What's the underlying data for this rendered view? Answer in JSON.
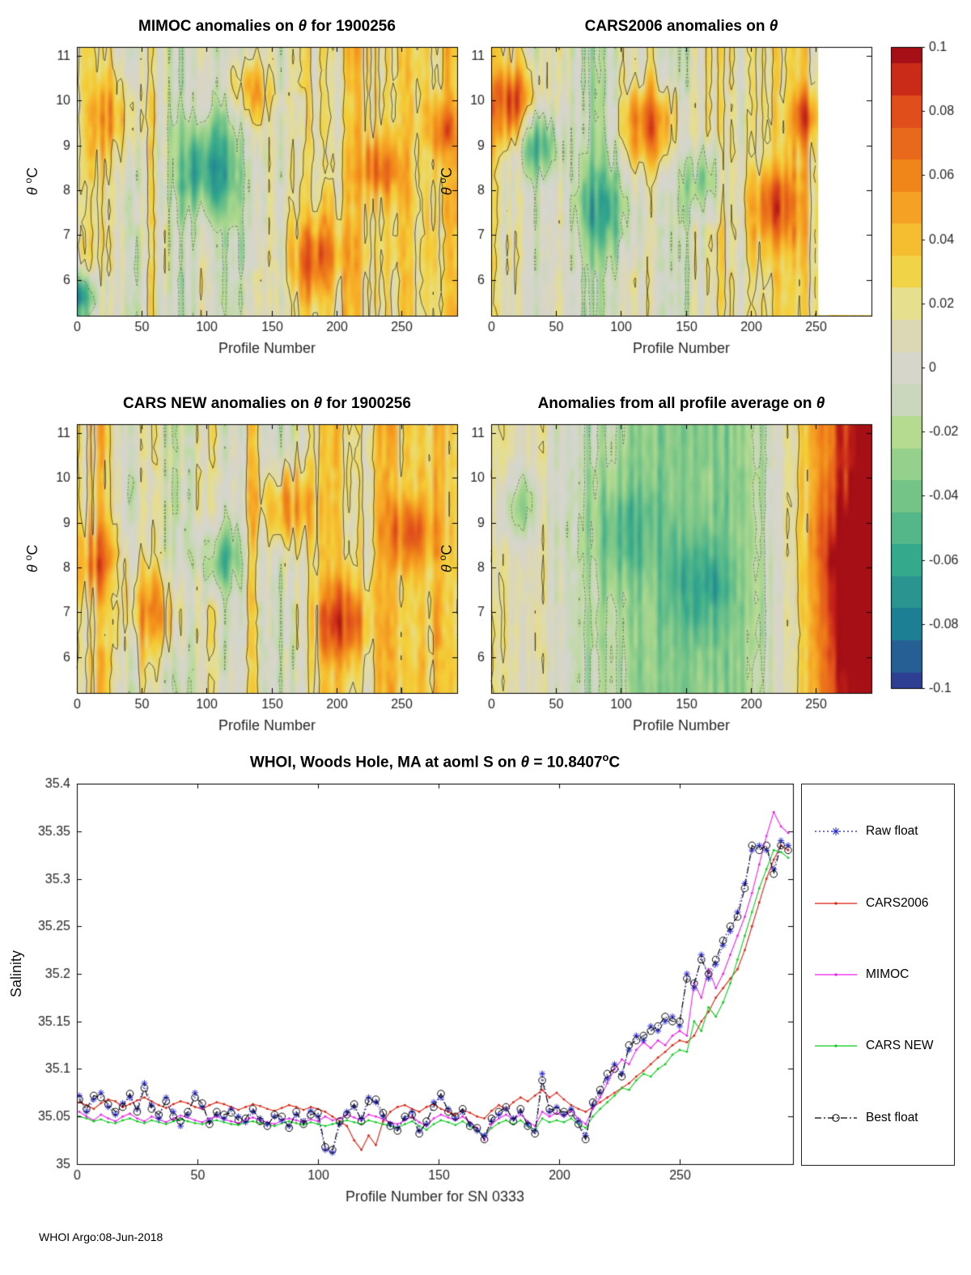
{
  "figure": {
    "footer": "WHOI Argo:08-Jun-2018"
  },
  "colorbar": {
    "range": [
      -0.1,
      0.1
    ],
    "ticks": [
      0.1,
      0.08,
      0.06,
      0.04,
      0.02,
      0,
      -0.02,
      -0.04,
      -0.06,
      -0.08,
      -0.1
    ],
    "stops": [
      [
        -0.1,
        "#2e3f93"
      ],
      [
        -0.08,
        "#1d7f93"
      ],
      [
        -0.06,
        "#35a98c"
      ],
      [
        -0.04,
        "#74c487"
      ],
      [
        -0.02,
        "#b5db90"
      ],
      [
        -0.006,
        "#d4d6cf"
      ],
      [
        0.006,
        "#d8d5c6"
      ],
      [
        0.02,
        "#e6df8e"
      ],
      [
        0.032,
        "#f3d13a"
      ],
      [
        0.045,
        "#f7b02a"
      ],
      [
        0.06,
        "#f08519"
      ],
      [
        0.08,
        "#e04e1c"
      ],
      [
        0.092,
        "#c42417"
      ],
      [
        0.1,
        "#a50f15"
      ]
    ]
  },
  "chart_data": [
    {
      "id": "mimoc",
      "type": "heatmap",
      "title": {
        "pre": "MIMOC anomalies on ",
        "theta": "θ",
        "post": " for 1900256"
      },
      "xlabel": "Profile Number",
      "ylabel": {
        "theta": "θ",
        "sup": "o",
        "post": "C"
      },
      "x_range": [
        0,
        293
      ],
      "y_range": [
        5.2,
        11.2
      ],
      "x_ticks": [
        0,
        50,
        100,
        150,
        200,
        250
      ],
      "y_ticks": [
        6,
        7,
        8,
        9,
        10,
        11
      ],
      "value_range": [
        -0.1,
        0.1
      ],
      "field": {
        "nx": 96,
        "ny": 24,
        "seed": 11,
        "noise_amp": 0.032,
        "data_end": 1,
        "col_ctrl": [
          0.015,
          0.025,
          -0.005,
          0.02,
          -0.015,
          0.005,
          -0.02,
          0.01,
          0,
          0.025,
          0.01,
          0.03,
          0.015,
          0.035,
          0.02,
          0.03
        ],
        "spots": [
          [
            0.34,
            0.45,
            0.06,
            -0.07
          ],
          [
            0.1,
            0.25,
            0.05,
            0.04
          ],
          [
            0.63,
            0.8,
            0.05,
            0.06
          ],
          [
            0.45,
            0.15,
            0.04,
            0.05
          ],
          [
            0.01,
            0.95,
            0.03,
            -0.09
          ],
          [
            0.8,
            0.45,
            0.04,
            0.05
          ],
          [
            0.97,
            0.3,
            0.03,
            0.04
          ]
        ]
      }
    },
    {
      "id": "cars2006",
      "type": "heatmap",
      "title": {
        "pre": "CARS2006 anomalies on ",
        "theta": "θ",
        "post": ""
      },
      "xlabel": "Profile Number",
      "ylabel": {
        "theta": "θ",
        "sup": "o",
        "post": "C"
      },
      "x_range": [
        0,
        293
      ],
      "y_range": [
        5.2,
        11.2
      ],
      "x_ticks": [
        0,
        50,
        100,
        150,
        200,
        250
      ],
      "y_ticks": [
        6,
        7,
        8,
        9,
        10,
        11
      ],
      "value_range": [
        -0.1,
        0.1
      ],
      "field": {
        "nx": 96,
        "ny": 24,
        "seed": 23,
        "noise_amp": 0.03,
        "data_end": 0.86,
        "col_ctrl": [
          0.02,
          0.01,
          -0.01,
          0,
          -0.02,
          -0.005,
          0.015,
          -0.01,
          0,
          0.02,
          0.005,
          0.025,
          0.03,
          0.02,
          0.035,
          0.025
        ],
        "spots": [
          [
            0.05,
            0.2,
            0.05,
            0.07
          ],
          [
            0.12,
            0.35,
            0.04,
            -0.06
          ],
          [
            0.42,
            0.28,
            0.05,
            0.07
          ],
          [
            0.3,
            0.6,
            0.05,
            -0.05
          ],
          [
            0.56,
            0.5,
            0.04,
            -0.04
          ],
          [
            0.75,
            0.6,
            0.05,
            0.06
          ],
          [
            0.83,
            0.25,
            0.03,
            0.05
          ]
        ]
      }
    },
    {
      "id": "carsnew",
      "type": "heatmap",
      "title": {
        "pre": "CARS NEW anomalies on ",
        "theta": "θ",
        "post": " for 1900256"
      },
      "xlabel": "Profile Number",
      "ylabel": {
        "theta": "θ",
        "sup": "o",
        "post": "C"
      },
      "x_range": [
        0,
        293
      ],
      "y_range": [
        5.2,
        11.2
      ],
      "x_ticks": [
        0,
        50,
        100,
        150,
        200,
        250
      ],
      "y_ticks": [
        6,
        7,
        8,
        9,
        10,
        11
      ],
      "value_range": [
        -0.1,
        0.1
      ],
      "field": {
        "nx": 96,
        "ny": 24,
        "seed": 37,
        "noise_amp": 0.032,
        "data_end": 1,
        "col_ctrl": [
          0.01,
          0.03,
          0,
          0.015,
          -0.01,
          0.02,
          0,
          0.025,
          -0.015,
          0.01,
          0.03,
          0.005,
          0.035,
          0.02,
          0.04,
          0.015
        ],
        "spots": [
          [
            0.2,
            0.7,
            0.05,
            0.05
          ],
          [
            0.38,
            0.5,
            0.04,
            -0.05
          ],
          [
            0.55,
            0.3,
            0.05,
            0.06
          ],
          [
            0.7,
            0.75,
            0.05,
            0.06
          ],
          [
            0.05,
            0.5,
            0.04,
            0.04
          ],
          [
            0.88,
            0.4,
            0.04,
            0.05
          ]
        ]
      }
    },
    {
      "id": "allprofile",
      "type": "heatmap",
      "title": {
        "pre": "Anomalies from all profile average on ",
        "theta": "θ",
        "post": ""
      },
      "xlabel": "Profile Number",
      "ylabel": {
        "theta": "θ",
        "sup": "o",
        "post": "C"
      },
      "x_range": [
        0,
        293
      ],
      "y_range": [
        5.2,
        11.2
      ],
      "x_ticks": [
        0,
        50,
        100,
        150,
        200,
        250
      ],
      "y_ticks": [
        6,
        7,
        8,
        9,
        10,
        11
      ],
      "value_range": [
        -0.1,
        0.1
      ],
      "field": {
        "nx": 96,
        "ny": 24,
        "seed": 51,
        "noise_amp": 0.022,
        "data_end": 1,
        "col_ctrl": [
          0.02,
          0.005,
          0.015,
          -0.01,
          -0.02,
          -0.025,
          -0.03,
          -0.035,
          -0.03,
          -0.04,
          -0.025,
          -0.01,
          0.02,
          0.05,
          0.09,
          0.12
        ],
        "spots": [
          [
            0.97,
            0.5,
            0.06,
            0.06
          ],
          [
            0.99,
            0.8,
            0.05,
            0.06
          ],
          [
            0.35,
            0.4,
            0.06,
            -0.03
          ],
          [
            0.55,
            0.6,
            0.06,
            -0.03
          ],
          [
            0.07,
            0.3,
            0.04,
            -0.04
          ]
        ]
      }
    },
    {
      "id": "salinity",
      "type": "line",
      "title": {
        "pre": "WHOI, Woods Hole, MA at aoml S on ",
        "theta": "θ",
        "mid": " = 10.8407",
        "sup": "o",
        "post": "C"
      },
      "xlabel": "Profile Number for SN 0333",
      "ylabel": "Salinity",
      "x_range": [
        0,
        297
      ],
      "y_range": [
        35,
        35.4
      ],
      "x_ticks": [
        0,
        50,
        100,
        150,
        200,
        250
      ],
      "y_ticks": [
        35,
        35.05,
        35.1,
        35.15,
        35.2,
        35.25,
        35.3,
        35.35,
        35.4
      ],
      "x_start": 1,
      "x_step": 3,
      "y_base": 35,
      "y_scale": 0.001,
      "draw_order": [
        1,
        2,
        3,
        0,
        4
      ],
      "series": [
        {
          "name": "Raw float",
          "color": "#2222cc",
          "line": "dotted",
          "marker": "asterisk",
          "y": [
            72,
            55,
            68,
            75,
            60,
            52,
            64,
            70,
            58,
            85,
            62,
            48,
            70,
            55,
            40,
            52,
            75,
            60,
            45,
            52,
            48,
            58,
            50,
            44,
            55,
            48,
            42,
            50,
            46,
            40,
            52,
            45,
            56,
            50,
            15,
            12,
            42,
            55,
            60,
            48,
            70,
            65,
            50,
            42,
            38,
            48,
            55,
            35,
            42,
            65,
            70,
            58,
            48,
            55,
            42,
            35,
            30,
            45,
            52,
            58,
            48,
            55,
            42,
            35,
            95,
            55,
            60,
            52,
            58,
            45,
            30,
            62,
            75,
            90,
            105,
            95,
            120,
            135,
            130,
            145,
            140,
            150,
            155,
            145,
            200,
            185,
            220,
            195,
            210,
            230,
            245,
            265,
            295,
            330,
            335,
            330,
            310,
            340,
            335
          ]
        },
        {
          "name": "CARS2006",
          "color": "#dd2211",
          "line": "solid",
          "marker": "dot",
          "y": [
            65,
            62,
            58,
            64,
            68,
            66,
            60,
            63,
            67,
            70,
            66,
            62,
            59,
            63,
            66,
            64,
            60,
            58,
            62,
            65,
            63,
            60,
            57,
            60,
            63,
            61,
            58,
            56,
            59,
            62,
            60,
            57,
            60,
            58,
            55,
            50,
            45,
            40,
            25,
            15,
            30,
            20,
            45,
            55,
            60,
            62,
            58,
            55,
            60,
            63,
            58,
            55,
            52,
            57,
            54,
            50,
            48,
            56,
            62,
            58,
            65,
            70,
            66,
            72,
            78,
            70,
            75,
            68,
            62,
            58,
            55,
            60,
            65,
            70,
            75,
            80,
            85,
            92,
            98,
            105,
            112,
            118,
            125,
            130,
            128,
            135,
            150,
            160,
            175,
            185,
            195,
            205,
            225,
            250,
            275,
            300,
            320,
            335,
            330
          ]
        },
        {
          "name": "MIMOC",
          "color": "#ee22ee",
          "line": "solid",
          "marker": "dot",
          "y": [
            55,
            50,
            46,
            52,
            48,
            45,
            50,
            53,
            48,
            45,
            50,
            47,
            44,
            48,
            51,
            49,
            46,
            44,
            48,
            50,
            47,
            45,
            43,
            47,
            49,
            46,
            44,
            42,
            46,
            48,
            46,
            44,
            47,
            45,
            50,
            46,
            48,
            52,
            49,
            46,
            52,
            50,
            47,
            44,
            42,
            46,
            50,
            44,
            40,
            48,
            52,
            49,
            46,
            50,
            44,
            38,
            25,
            42,
            48,
            52,
            47,
            52,
            45,
            40,
            55,
            50,
            54,
            50,
            56,
            48,
            42,
            58,
            70,
            85,
            100,
            110,
            105,
            120,
            128,
            122,
            130,
            125,
            135,
            140,
            135,
            190,
            175,
            205,
            185,
            200,
            220,
            240,
            260,
            285,
            315,
            345,
            370,
            355,
            348
          ]
        },
        {
          "name": "CARS NEW",
          "color": "#11cc22",
          "line": "solid",
          "marker": "dot",
          "y": [
            50,
            48,
            45,
            47,
            44,
            43,
            46,
            48,
            45,
            43,
            46,
            44,
            42,
            45,
            47,
            45,
            43,
            42,
            45,
            46,
            44,
            42,
            41,
            44,
            45,
            43,
            42,
            40,
            43,
            45,
            43,
            41,
            44,
            42,
            40,
            42,
            44,
            46,
            44,
            42,
            46,
            44,
            42,
            40,
            38,
            42,
            45,
            40,
            36,
            42,
            46,
            44,
            41,
            45,
            40,
            35,
            30,
            38,
            43,
            46,
            42,
            46,
            40,
            36,
            48,
            44,
            46,
            44,
            48,
            42,
            38,
            50,
            58,
            65,
            72,
            80,
            78,
            88,
            95,
            92,
            100,
            105,
            115,
            120,
            118,
            150,
            140,
            165,
            155,
            170,
            190,
            215,
            240,
            265,
            290,
            310,
            330,
            328,
            322
          ]
        },
        {
          "name": "Best float",
          "color": "#000000",
          "line": "dashdot",
          "marker": "circle",
          "y": [
            68,
            58,
            72,
            70,
            63,
            55,
            60,
            74,
            55,
            80,
            58,
            52,
            66,
            50,
            45,
            55,
            70,
            64,
            42,
            55,
            52,
            54,
            46,
            48,
            58,
            45,
            40,
            52,
            50,
            38,
            55,
            42,
            52,
            54,
            18,
            15,
            45,
            52,
            63,
            45,
            66,
            68,
            54,
            40,
            35,
            50,
            52,
            32,
            45,
            60,
            74,
            55,
            50,
            58,
            40,
            38,
            26,
            48,
            55,
            60,
            45,
            58,
            40,
            32,
            88,
            58,
            56,
            55,
            54,
            42,
            26,
            65,
            78,
            95,
            100,
            92,
            125,
            130,
            135,
            140,
            145,
            155,
            150,
            150,
            195,
            190,
            215,
            200,
            215,
            235,
            250,
            260,
            290,
            335,
            330,
            335,
            305,
            335,
            330
          ]
        }
      ]
    }
  ]
}
